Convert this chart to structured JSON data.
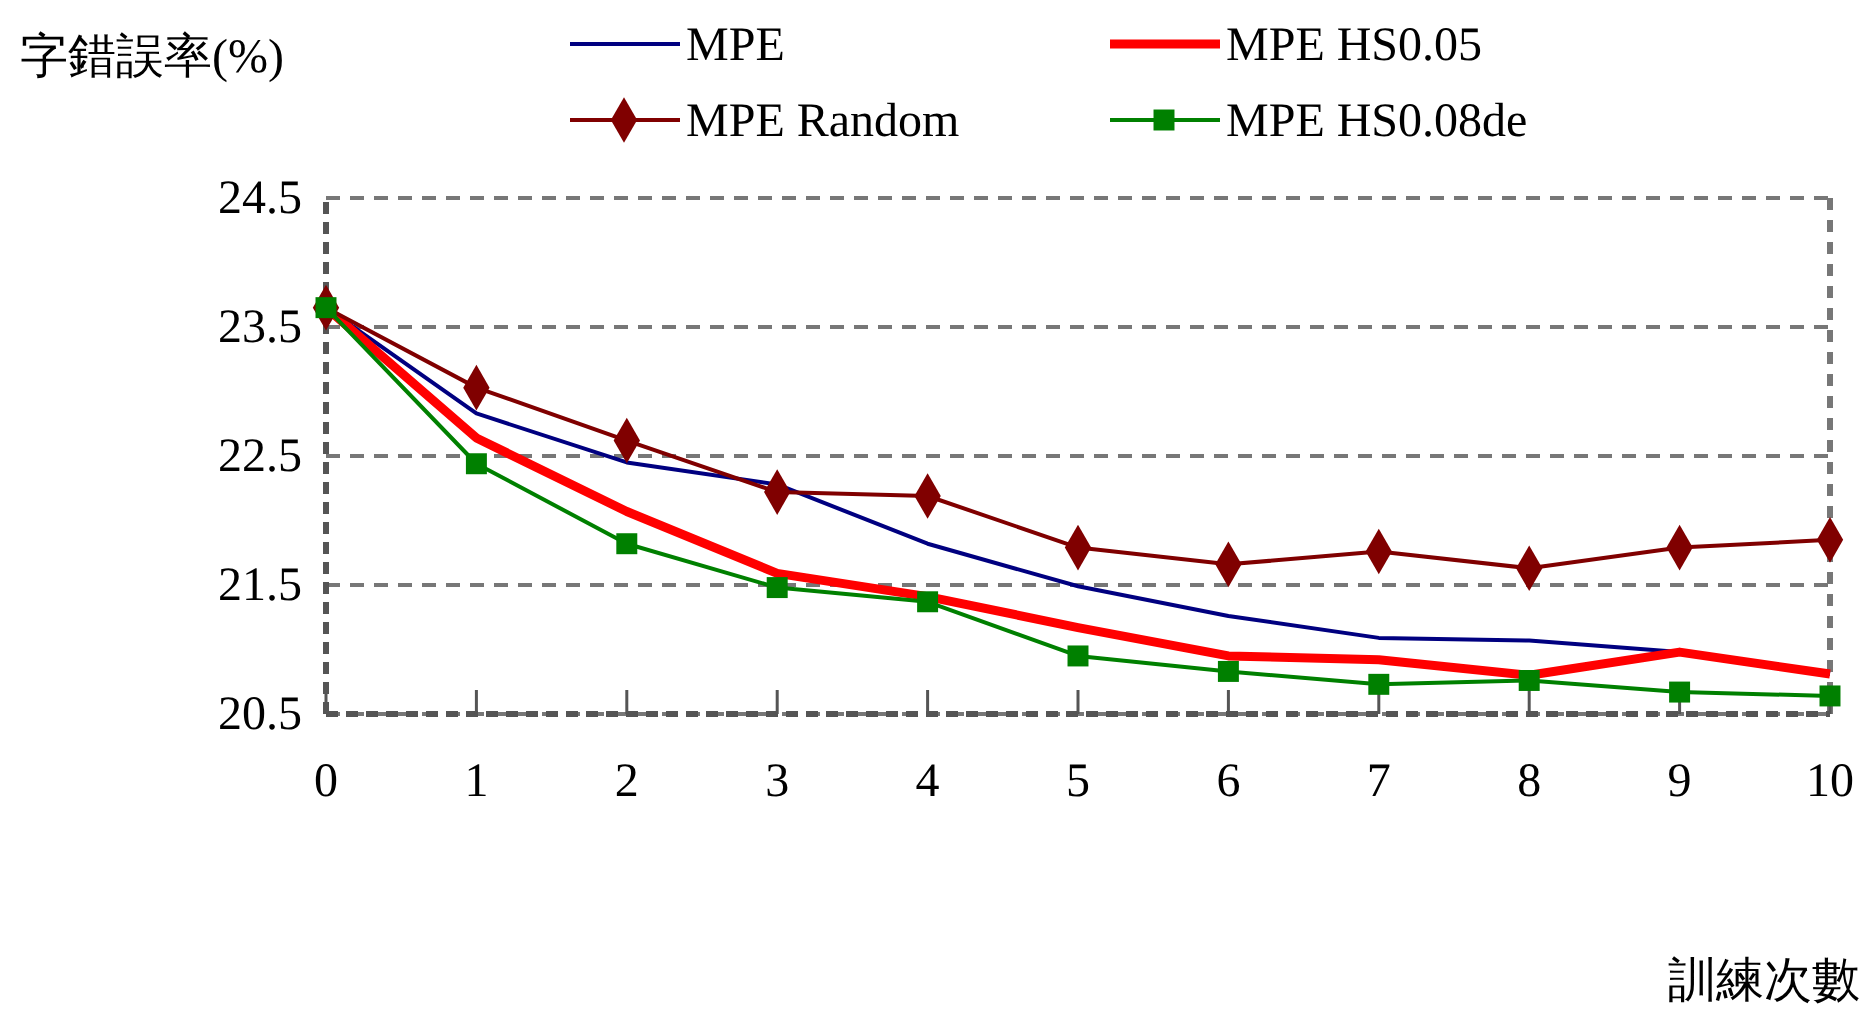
{
  "chart_data": {
    "type": "line",
    "ylabel": "字錯誤率(%)",
    "xlabel": "訓練次數",
    "x": [
      0,
      1,
      2,
      3,
      4,
      5,
      6,
      7,
      8,
      9,
      10
    ],
    "xlim": [
      0,
      10
    ],
    "xticks": [
      0,
      1,
      2,
      3,
      4,
      5,
      6,
      7,
      8,
      9,
      10
    ],
    "ylim": [
      20.5,
      24.5
    ],
    "yticks": [
      20.5,
      21.5,
      22.5,
      23.5,
      24.5
    ],
    "grid": "y",
    "legend": "top",
    "series": [
      {
        "name": "MPE",
        "color": "#000080",
        "marker": "none",
        "values": [
          23.65,
          22.83,
          22.45,
          22.28,
          21.82,
          21.49,
          21.26,
          21.09,
          21.07,
          20.98,
          20.81
        ]
      },
      {
        "name": "MPE HS0.05",
        "color": "#ff0000",
        "marker": "none",
        "values": [
          23.65,
          22.64,
          22.07,
          21.59,
          21.41,
          21.17,
          20.95,
          20.92,
          20.8,
          20.98,
          20.81
        ]
      },
      {
        "name": "MPE Random",
        "color": "#800000",
        "marker": "diamond",
        "values": [
          23.65,
          23.03,
          22.62,
          22.22,
          22.19,
          21.79,
          21.66,
          21.76,
          21.63,
          21.79,
          21.85
        ]
      },
      {
        "name": "MPE HS0.08de",
        "color": "#008000",
        "marker": "square",
        "values": [
          23.65,
          22.44,
          21.82,
          21.48,
          21.37,
          20.95,
          20.83,
          20.73,
          20.76,
          20.67,
          20.64
        ]
      }
    ]
  }
}
